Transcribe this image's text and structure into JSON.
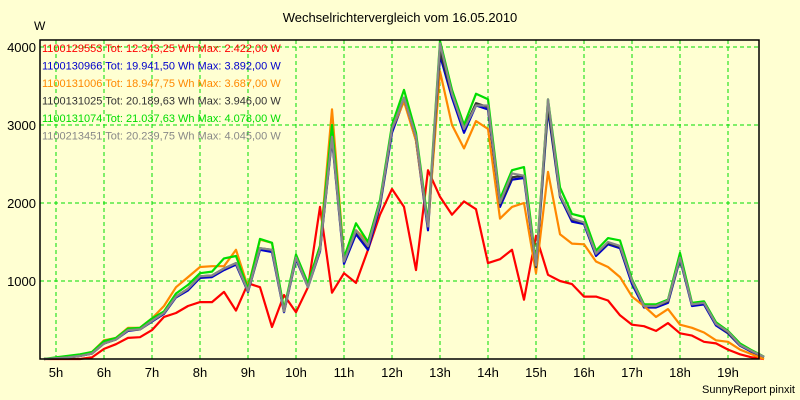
{
  "chart_data": {
    "type": "line",
    "title": "Wechselrichtervergleich vom 16.05.2010",
    "ylabel": "W",
    "xlabel": "",
    "footer": "SunnyReport pinxit",
    "ylim": [
      0,
      4000
    ],
    "yticks": [
      1000,
      2000,
      3000,
      4000
    ],
    "ytick_labels": [
      "1000",
      "2000",
      "3000",
      "4000"
    ],
    "xlim_hours": [
      4.667,
      19.667
    ],
    "xticks_hours": [
      5,
      6,
      7,
      8,
      9,
      10,
      11,
      12,
      13,
      14,
      15,
      16,
      17,
      18,
      19
    ],
    "xtick_labels": [
      "5h",
      "6h",
      "7h",
      "8h",
      "9h",
      "10h",
      "11h",
      "12h",
      "13h",
      "14h",
      "15h",
      "16h",
      "17h",
      "18h",
      "19h"
    ],
    "grid": true,
    "grid_color": "#00dd00",
    "legend_position": "top-left",
    "x": [
      4.75,
      5.0,
      5.25,
      5.5,
      5.75,
      6.0,
      6.25,
      6.5,
      6.75,
      7.0,
      7.25,
      7.5,
      7.75,
      8.0,
      8.25,
      8.5,
      8.75,
      9.0,
      9.25,
      9.5,
      9.75,
      10.0,
      10.25,
      10.5,
      10.75,
      11.0,
      11.25,
      11.5,
      11.75,
      12.0,
      12.25,
      12.5,
      12.75,
      13.0,
      13.25,
      13.5,
      13.75,
      14.0,
      14.25,
      14.5,
      14.75,
      15.0,
      15.25,
      15.5,
      15.75,
      16.0,
      16.25,
      16.5,
      16.75,
      17.0,
      17.25,
      17.5,
      17.75,
      18.0,
      18.25,
      18.5,
      18.75,
      19.0,
      19.25,
      19.5,
      19.75
    ],
    "series": [
      {
        "name": "1100129553 Tot: 12.343,25 Wh Max: 2.422,00 W",
        "color": "#ff0000",
        "values": [
          0,
          0,
          0,
          0,
          20,
          130,
          190,
          270,
          280,
          370,
          540,
          590,
          680,
          730,
          730,
          860,
          620,
          970,
          920,
          410,
          820,
          600,
          920,
          1950,
          850,
          1100,
          975,
          1400,
          1850,
          2180,
          1950,
          1140,
          2420,
          2080,
          1850,
          2020,
          1920,
          1230,
          1280,
          1400,
          760,
          1580,
          1080,
          1000,
          960,
          800,
          800,
          750,
          560,
          440,
          420,
          360,
          460,
          330,
          300,
          220,
          200,
          120,
          60,
          20,
          0
        ]
      },
      {
        "name": "1100130966 Tot: 19.941,50 Wh Max: 3.892,00 W",
        "color": "#0000cc",
        "values": [
          0,
          10,
          20,
          40,
          70,
          200,
          250,
          360,
          380,
          480,
          580,
          790,
          880,
          1040,
          1050,
          1140,
          1210,
          860,
          1400,
          1370,
          600,
          1280,
          920,
          1380,
          2820,
          1220,
          1600,
          1400,
          1960,
          2900,
          3320,
          2800,
          1650,
          3892,
          3350,
          2900,
          3250,
          3200,
          1950,
          2300,
          2320,
          1150,
          3200,
          2080,
          1760,
          1730,
          1320,
          1470,
          1420,
          960,
          660,
          660,
          720,
          1280,
          680,
          700,
          430,
          330,
          170,
          90,
          20
        ]
      },
      {
        "name": "1100131006 Tot: 18.947,75 Wh Max: 3.687,00 W",
        "color": "#ff8800",
        "values": [
          0,
          10,
          30,
          50,
          90,
          240,
          270,
          400,
          400,
          520,
          680,
          920,
          1050,
          1180,
          1190,
          1190,
          1400,
          920,
          1530,
          1490,
          620,
          1320,
          940,
          1450,
          3200,
          1300,
          1650,
          1500,
          2000,
          2950,
          3300,
          2800,
          1700,
          3687,
          3000,
          2700,
          3050,
          2950,
          1800,
          1950,
          2000,
          1100,
          2400,
          1600,
          1480,
          1470,
          1250,
          1180,
          1050,
          800,
          680,
          540,
          640,
          440,
          400,
          340,
          240,
          220,
          120,
          60,
          0
        ]
      },
      {
        "name": "1100131025 Tot: 20.189,63 Wh Max: 3.946,00 W",
        "color": "#333333",
        "values": [
          0,
          10,
          20,
          40,
          70,
          200,
          250,
          370,
          380,
          490,
          590,
          800,
          900,
          1060,
          1070,
          1160,
          1230,
          870,
          1420,
          1400,
          610,
          1300,
          930,
          1400,
          2850,
          1250,
          1640,
          1440,
          1990,
          2950,
          3350,
          2850,
          1700,
          3946,
          3400,
          2950,
          3280,
          3230,
          1990,
          2330,
          2350,
          1180,
          3250,
          2100,
          1790,
          1750,
          1350,
          1490,
          1440,
          1000,
          680,
          680,
          740,
          1300,
          700,
          720,
          450,
          340,
          180,
          100,
          30
        ]
      },
      {
        "name": "1100131074 Tot: 21.037,63 Wh Max: 4.078,00 W",
        "color": "#00dd00",
        "values": [
          0,
          20,
          40,
          60,
          90,
          230,
          270,
          390,
          400,
          520,
          610,
          840,
          950,
          1100,
          1120,
          1290,
          1320,
          900,
          1540,
          1490,
          640,
          1340,
          970,
          1450,
          3000,
          1300,
          1740,
          1500,
          2040,
          3000,
          3450,
          2900,
          1750,
          4078,
          3450,
          3000,
          3400,
          3330,
          2050,
          2420,
          2460,
          1230,
          3330,
          2200,
          1860,
          1820,
          1390,
          1550,
          1520,
          1020,
          700,
          700,
          760,
          1360,
          720,
          740,
          470,
          360,
          200,
          110,
          30
        ]
      },
      {
        "name": "1100213451 Tot: 20.239,75 Wh Max: 4.045,00 W",
        "color": "#888888",
        "values": [
          0,
          10,
          20,
          40,
          70,
          200,
          250,
          370,
          380,
          490,
          590,
          800,
          900,
          1060,
          1070,
          1160,
          1230,
          870,
          1420,
          1400,
          610,
          1300,
          920,
          1400,
          2850,
          1250,
          1650,
          1450,
          2000,
          2950,
          3350,
          2850,
          1700,
          4045,
          3400,
          2950,
          3250,
          3250,
          2000,
          2380,
          2350,
          1200,
          3330,
          2100,
          1800,
          1750,
          1350,
          1500,
          1450,
          1000,
          680,
          680,
          750,
          1300,
          700,
          720,
          450,
          350,
          180,
          100,
          30
        ]
      }
    ]
  }
}
